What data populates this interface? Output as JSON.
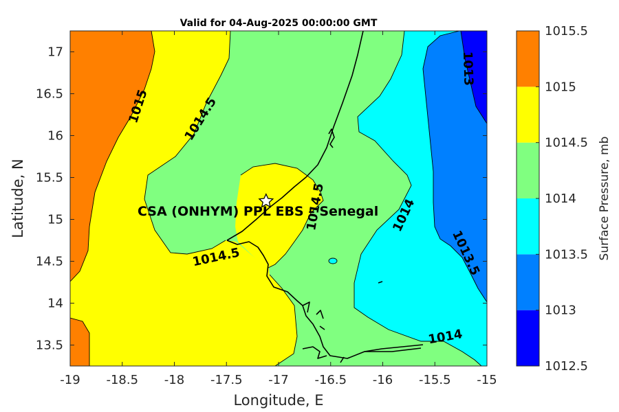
{
  "title": "Valid for 04-Aug-2025 00:00:00 GMT",
  "xlabel": "Longitude, E",
  "ylabel": "Latitude, N",
  "colorbar_label": "Surface Pressure, mb",
  "site_label": "CSA (ONHYM) PPL EBS  – Senegal",
  "site_marker": "star-marker",
  "colors": {
    "c1012_5": "#0000ff",
    "c1013": "#0080ff",
    "c1013_5": "#00ffff",
    "c1014": "#80ff80",
    "c1014_5": "#ffff00",
    "c1015": "#ff8000",
    "c1015_5": "#ff0000"
  },
  "chart_data": {
    "type": "heatmap",
    "variable": "surface pressure",
    "units": "mb",
    "xlim": [
      -19,
      -15
    ],
    "ylim": [
      13.25,
      17.25
    ],
    "xticks": [
      -19,
      -18.5,
      -18,
      -17.5,
      -17,
      -16.5,
      -16,
      -15.5,
      -15
    ],
    "yticks": [
      13.5,
      14,
      14.5,
      15,
      15.5,
      16,
      16.5,
      17
    ],
    "xtick_labels": [
      "-19",
      "-18.5",
      "-18",
      "-17.5",
      "-17",
      "-16.5",
      "-16",
      "-15.5",
      "-15"
    ],
    "ytick_labels": [
      "13.5",
      "14",
      "14.5",
      "15",
      "15.5",
      "16",
      "16.5",
      "17"
    ],
    "colorbar": {
      "levels": [
        1012.5,
        1013,
        1013.5,
        1014,
        1014.5,
        1015,
        1015.5
      ],
      "tick_labels": [
        "1012.5",
        "1013",
        "1013.5",
        "1014",
        "1014.5",
        "1015",
        "1015.5"
      ]
    },
    "contour_labels": [
      {
        "text": "1015",
        "lon": -18.35,
        "lat": 16.35
      },
      {
        "text": "1014.5",
        "lon": -17.75,
        "lat": 16.2
      },
      {
        "text": "1014.5",
        "lon": -17.6,
        "lat": 14.55
      },
      {
        "text": "1014.5",
        "lon": -16.65,
        "lat": 15.15
      },
      {
        "text": "1014",
        "lon": -15.8,
        "lat": 15.05
      },
      {
        "text": "1014",
        "lon": -15.4,
        "lat": 13.6
      },
      {
        "text": "1013.5",
        "lon": -15.2,
        "lat": 14.6
      },
      {
        "text": "1013",
        "lon": -15.18,
        "lat": 16.8
      }
    ],
    "site": {
      "lon": -17.12,
      "lat": 15.22
    }
  }
}
